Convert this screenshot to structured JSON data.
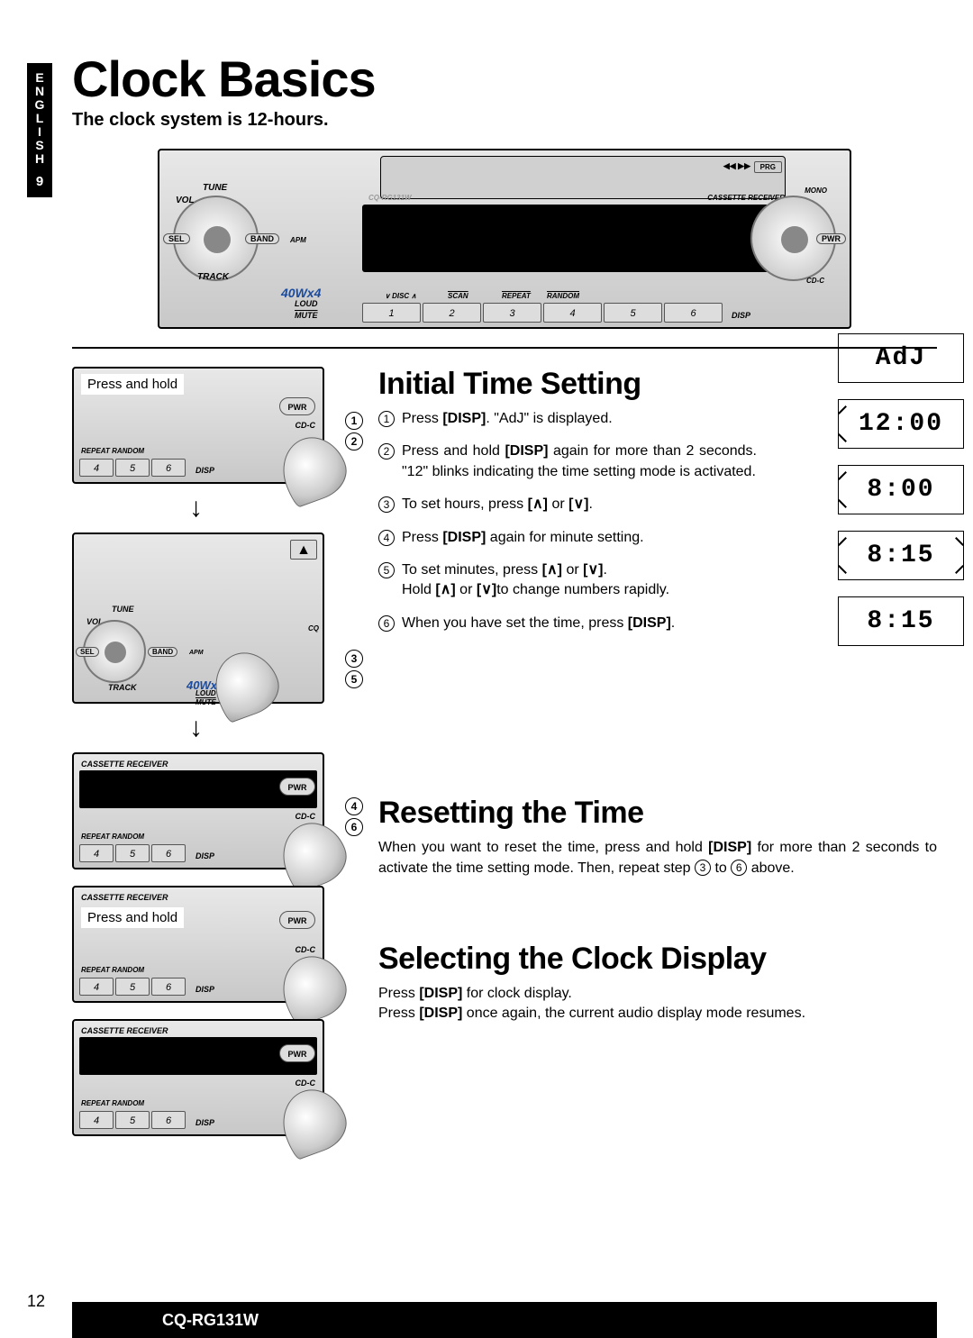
{
  "sideTab": {
    "language": "ENGLISH",
    "pageNum": "9"
  },
  "title": "Clock Basics",
  "subtitle": "The clock system is 12-hours.",
  "stereo": {
    "brand": "Panasonic",
    "model": "CQ-RG131W",
    "cassetteLabel": "CASSETTE  RECEIVER",
    "power": "40Wx4",
    "leftKnob": {
      "top": "TUNE",
      "left": "VOL",
      "bottom": "TRACK",
      "center": "SEL",
      "band": "BAND",
      "apm": "APM"
    },
    "rightKnob": {
      "pwr": "PWR",
      "mono": "MONO",
      "cdc": "CD-C",
      "prg": "PRG"
    },
    "bottomLabels": {
      "loud": "LOUD",
      "mute": "MUTE",
      "disc": "DISC",
      "scan": "SCAN",
      "repeat": "REPEAT",
      "random": "RANDOM",
      "disp": "DISP"
    },
    "presets": [
      "1",
      "2",
      "3",
      "4",
      "5",
      "6"
    ]
  },
  "widgets": {
    "pressHold": "Press and hold",
    "presets": [
      "4",
      "5",
      "6"
    ],
    "disp": "DISP",
    "pwr": "PWR",
    "cdc": "CD-C",
    "cassette": "CASSETTE  RECEIVER",
    "repeatRandom": "REPEAT    RANDOM",
    "sel": "SEL",
    "band": "BAND",
    "apm": "APM",
    "tune": "TUNE",
    "vol": "VOL",
    "track": "TRACK",
    "fortyWx": "40Wx",
    "loud": "LOUD",
    "mute": "MUTE"
  },
  "callouts": {
    "w1": [
      "1",
      "2"
    ],
    "w2": [
      "3",
      "5"
    ],
    "w3": [
      "4",
      "6"
    ]
  },
  "sections": {
    "initial": {
      "title": "Initial Time Setting",
      "steps": [
        {
          "n": "1",
          "html": "Press <b>[DISP]</b>. \"AdJ\" is displayed."
        },
        {
          "n": "2",
          "html": "Press and hold <b>[DISP]</b> again for more than 2 seconds. \"12\" blinks indicating the time setting mode is activated."
        },
        {
          "n": "3",
          "html": "To set hours, press <b>[</b><span class='up-sym'>∧</span><b>]</b> or <b>[</b><span class='dn-sym'>∨</span><b>]</b>."
        },
        {
          "n": "4",
          "html": "Press <b>[DISP]</b> again for minute setting."
        },
        {
          "n": "5",
          "html": "To set minutes, press <b>[</b><span class='up-sym'>∧</span><b>]</b> or <b>[</b><span class='dn-sym'>∨</span><b>]</b>.<br>Hold <b>[</b><span class='up-sym'>∧</span><b>]</b> or <b>[</b><span class='dn-sym'>∨</span><b>]</b>to change numbers rapidly."
        },
        {
          "n": "6",
          "html": "When you have set the time, press <b>[DISP]</b>."
        }
      ]
    },
    "reset": {
      "title": "Resetting the Time",
      "body": "When you want to reset the time, press and hold <b>[DISP]</b> for more than 2 seconds to activate the time setting mode. Then, repeat step <span class='inline-num'>3</span> to <span class='inline-num'>6</span> above."
    },
    "select": {
      "title": "Selecting the Clock Display",
      "body": "Press <b>[DISP]</b> for clock display.<br>Press <b>[DISP]</b> once again, the current audio display mode resumes."
    }
  },
  "lcdDisplays": [
    "AdJ",
    "12:00",
    "8:00",
    "8:15",
    "8:15"
  ],
  "lcdBlinkLeft": [
    false,
    true,
    true,
    true,
    false
  ],
  "lcdBlinkRight": [
    false,
    false,
    false,
    true,
    false
  ],
  "footer": {
    "pageNum": "12",
    "model": "CQ-RG131W"
  },
  "colors": {
    "black": "#000000",
    "bg": "#ffffff",
    "metal1": "#e8e8e8",
    "metal2": "#c8c8c8"
  }
}
